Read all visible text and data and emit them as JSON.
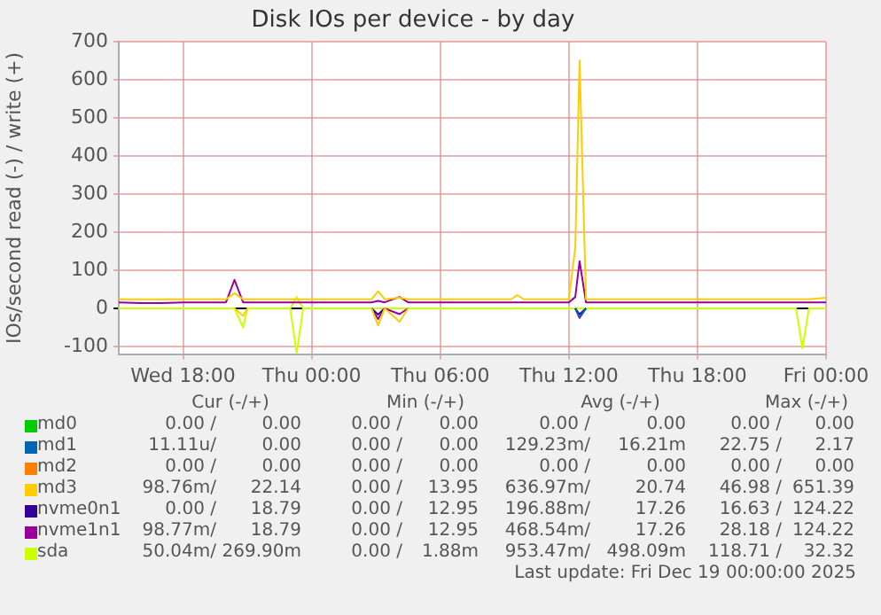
{
  "chart_data": {
    "type": "line",
    "title": "Disk IOs per device - by day",
    "ylabel": "IOs/second read (-) / write (+)",
    "x": [
      "2025-12-17T15:00",
      "2025-12-17T16:00",
      "2025-12-17T17:00",
      "2025-12-17T18:00",
      "2025-12-17T19:00",
      "2025-12-17T20:00",
      "2025-12-17T20:24",
      "2025-12-17T20:48",
      "2025-12-17T21:00",
      "2025-12-17T22:00",
      "2025-12-17T23:00",
      "2025-12-17T23:18",
      "2025-12-17T23:36",
      "2025-12-18T00:00",
      "2025-12-18T02:00",
      "2025-12-18T02:48",
      "2025-12-18T03:06",
      "2025-12-18T03:24",
      "2025-12-18T04:06",
      "2025-12-18T04:30",
      "2025-12-18T06:00",
      "2025-12-18T08:00",
      "2025-12-18T09:18",
      "2025-12-18T09:36",
      "2025-12-18T09:54",
      "2025-12-18T11:00",
      "2025-12-18T12:00",
      "2025-12-18T12:18",
      "2025-12-18T12:30",
      "2025-12-18T12:48",
      "2025-12-18T13:12",
      "2025-12-18T15:00",
      "2025-12-18T18:00",
      "2025-12-18T21:00",
      "2025-12-18T22:36",
      "2025-12-18T22:54",
      "2025-12-18T23:12",
      "2025-12-19T00:00"
    ],
    "xlim": [
      "2025-12-17T15:00",
      "2025-12-19T00:00"
    ],
    "xticks": [
      {
        "value": "2025-12-17T18:00",
        "label": "Wed 18:00"
      },
      {
        "value": "2025-12-18T00:00",
        "label": "Thu 00:00"
      },
      {
        "value": "2025-12-18T06:00",
        "label": "Thu 06:00"
      },
      {
        "value": "2025-12-18T12:00",
        "label": "Thu 12:00"
      },
      {
        "value": "2025-12-18T18:00",
        "label": "Thu 18:00"
      },
      {
        "value": "2025-12-19T00:00",
        "label": "Fri 00:00"
      }
    ],
    "ylim": [
      -120,
      700
    ],
    "yticks": [
      -100,
      0,
      100,
      200,
      300,
      400,
      500,
      600,
      700
    ],
    "grid": true,
    "legend": "bottom",
    "marker": "none",
    "line_style": "solid",
    "series": [
      {
        "name": "md0",
        "color": "#00cc00",
        "values": [
          null,
          null,
          null,
          null,
          null,
          null,
          null,
          null,
          null,
          null,
          null,
          null,
          null,
          null,
          null,
          null,
          null,
          null,
          null,
          null,
          null,
          null,
          null,
          null,
          null,
          null,
          null,
          null,
          null,
          null,
          null,
          null,
          null,
          null,
          null,
          null,
          null,
          null
        ]
      },
      {
        "name": "md1",
        "color": "#0066b3",
        "values": [
          null,
          null,
          null,
          null,
          null,
          null,
          null,
          null,
          null,
          null,
          null,
          null,
          null,
          null,
          null,
          null,
          null,
          null,
          null,
          null,
          null,
          null,
          null,
          null,
          null,
          null,
          null,
          null,
          null,
          null,
          null,
          null,
          null,
          null,
          null,
          null,
          null,
          null
        ]
      },
      {
        "name": "md2",
        "color": "#ff8000",
        "values": [
          null,
          null,
          null,
          null,
          null,
          null,
          null,
          null,
          null,
          null,
          null,
          null,
          null,
          null,
          null,
          null,
          null,
          null,
          null,
          null,
          null,
          null,
          null,
          null,
          null,
          null,
          null,
          null,
          null,
          null,
          null,
          null,
          null,
          null,
          null,
          null,
          null,
          null
        ]
      },
      {
        "name": "md3",
        "color": "#ffcc00",
        "values": [
          24,
          24,
          24,
          24,
          24,
          24,
          40,
          24,
          24,
          24,
          24,
          24,
          24,
          24,
          24,
          24,
          45,
          24,
          28,
          24,
          24,
          24,
          24,
          35,
          24,
          24,
          24,
          160,
          651,
          24,
          24,
          24,
          24,
          24,
          24,
          24,
          24,
          28
        ]
      },
      {
        "name": "nvme0n1",
        "color": "#330099",
        "values": [
          null,
          null,
          null,
          null,
          null,
          null,
          null,
          null,
          null,
          null,
          null,
          null,
          null,
          null,
          null,
          null,
          null,
          null,
          null,
          null,
          null,
          null,
          null,
          null,
          null,
          null,
          null,
          null,
          null,
          null,
          null,
          null,
          null,
          null,
          null,
          null,
          null,
          null
        ]
      },
      {
        "name": "nvme1n1",
        "color": "#990099",
        "values": [
          16,
          14,
          14,
          16,
          16,
          16,
          75,
          16,
          16,
          16,
          16,
          16,
          16,
          16,
          16,
          16,
          20,
          16,
          30,
          16,
          16,
          16,
          16,
          16,
          16,
          16,
          16,
          30,
          124,
          16,
          16,
          16,
          16,
          16,
          16,
          16,
          16,
          16
        ]
      },
      {
        "name": "sda",
        "color": "#ccff00",
        "values": [
          null,
          null,
          null,
          null,
          null,
          null,
          null,
          null,
          null,
          null,
          0,
          30,
          0,
          null,
          null,
          null,
          null,
          null,
          null,
          null,
          null,
          null,
          null,
          null,
          null,
          null,
          null,
          null,
          null,
          null,
          null,
          null,
          null,
          null,
          null,
          null,
          null,
          null
        ]
      },
      {
        "color": "#0066b3",
        "values": [
          null,
          null,
          null,
          null,
          null,
          null,
          null,
          null,
          null,
          null,
          null,
          null,
          null,
          null,
          null,
          null,
          null,
          null,
          null,
          null,
          null,
          null,
          null,
          null,
          null,
          null,
          null,
          0,
          -22,
          0,
          null,
          null,
          null,
          null,
          null,
          null,
          null,
          null
        ]
      },
      {
        "color": "#ffcc00",
        "values": [
          null,
          null,
          null,
          null,
          null,
          null,
          0,
          -20,
          0,
          null,
          null,
          null,
          null,
          null,
          null,
          0,
          -45,
          0,
          -35,
          0,
          null,
          null,
          null,
          null,
          null,
          null,
          null,
          null,
          null,
          null,
          null,
          null,
          null,
          null,
          null,
          null,
          null,
          null
        ]
      },
      {
        "color": "#330099",
        "values": [
          null,
          null,
          null,
          null,
          null,
          null,
          null,
          null,
          null,
          null,
          null,
          null,
          null,
          null,
          null,
          0,
          -16,
          0,
          null,
          null,
          null,
          null,
          null,
          null,
          null,
          null,
          null,
          0,
          -15,
          0,
          null,
          null,
          null,
          null,
          null,
          null,
          null,
          null
        ]
      },
      {
        "color": "#990099",
        "values": [
          null,
          null,
          null,
          null,
          null,
          null,
          null,
          null,
          null,
          null,
          null,
          null,
          null,
          null,
          null,
          0,
          -28,
          0,
          -15,
          0,
          null,
          null,
          null,
          null,
          null,
          null,
          null,
          0,
          -25,
          0,
          null,
          null,
          null,
          null,
          null,
          null,
          null,
          null
        ]
      },
      {
        "color": "#ccff00",
        "values": [
          0,
          0,
          0,
          0,
          0,
          0,
          0,
          -50,
          0,
          0,
          0,
          -118,
          0,
          0,
          0,
          0,
          0,
          0,
          0,
          0,
          0,
          0,
          0,
          0,
          0,
          0,
          0,
          0,
          0,
          0,
          0,
          0,
          0,
          0,
          0,
          -105,
          0,
          0
        ]
      }
    ],
    "annotations": [
      "Cur (-/+)",
      "Min (-/+)",
      "Avg (-/+)",
      "Max (-/+)",
      "0.00 /",
      "0.00",
      "0.00 /",
      "0.00",
      "0.00 /",
      "0.00",
      "0.00 /",
      "0.00",
      "11.11u/",
      "0.00",
      "0.00 /",
      "0.00",
      "129.23m/",
      "16.21m",
      "22.75 /",
      "2.17",
      "0.00 /",
      "0.00",
      "0.00 /",
      "0.00",
      "0.00 /",
      "0.00",
      "0.00 /",
      "0.00",
      "98.76m/",
      "22.14",
      "0.00 /",
      "13.95",
      "636.97m/",
      "20.74",
      "46.98 /",
      "651.39",
      "0.00 /",
      "18.79",
      "0.00 /",
      "12.95",
      "196.88m/",
      "17.26",
      "16.63 /",
      "124.22",
      "98.77m/",
      "18.79",
      "0.00 /",
      "12.95",
      "468.54m/",
      "17.26",
      "28.18 /",
      "124.22",
      "50.04m/",
      "269.90m",
      "0.00 /",
      "1.88m",
      "953.47m/",
      "498.09m",
      "118.71 /",
      "32.32",
      "Last update: Fri Dec 19 00:00:00 2025"
    ]
  }
}
